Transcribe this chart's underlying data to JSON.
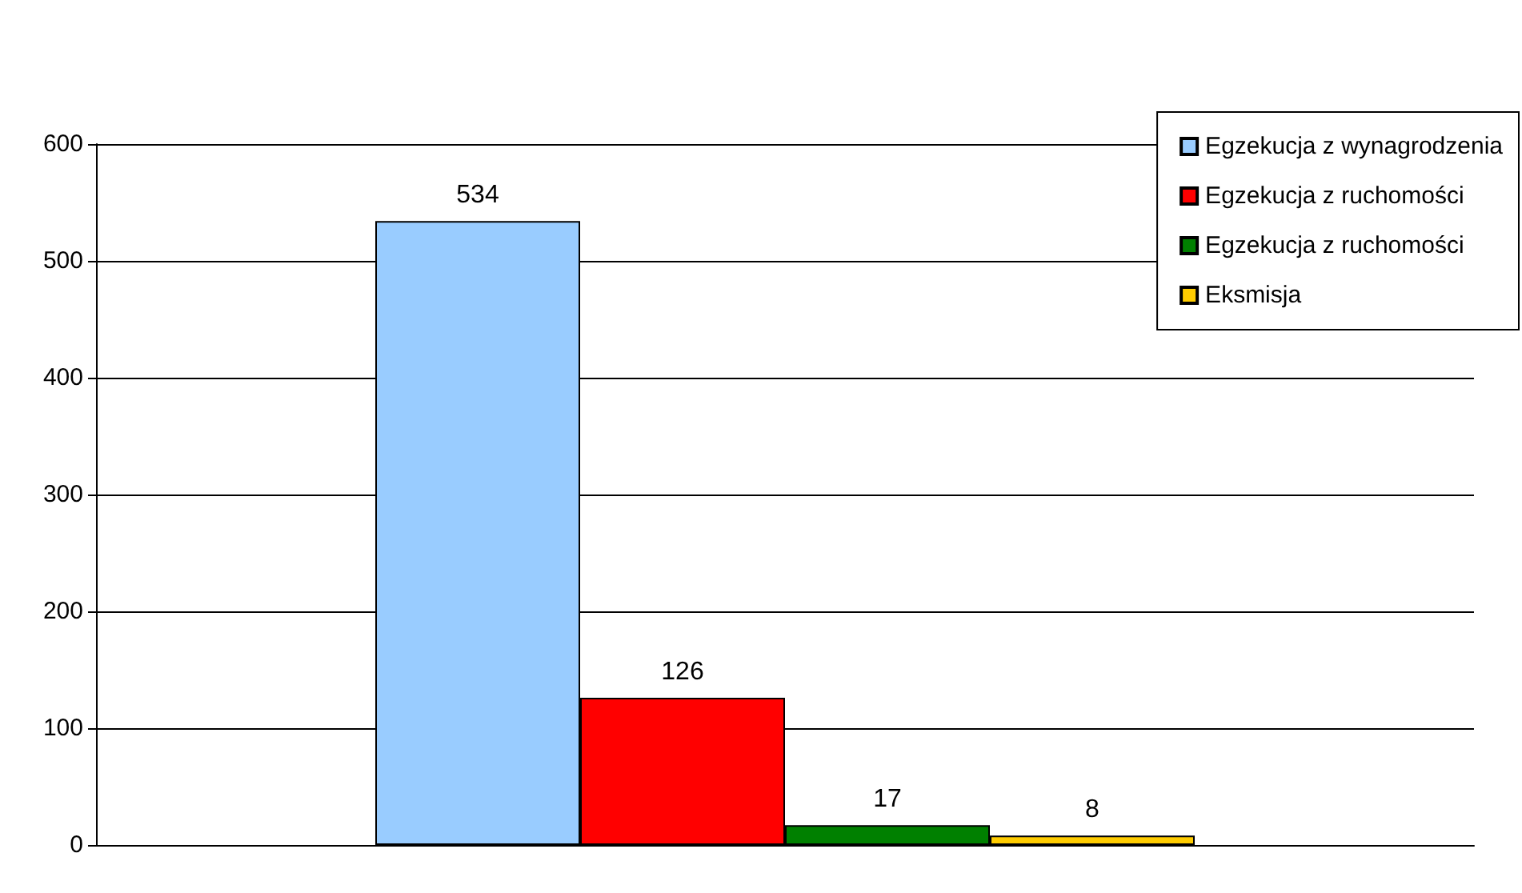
{
  "chart_data": {
    "type": "bar",
    "categories": [
      null
    ],
    "series": [
      {
        "name": "Egzekucja z wynagrodzenia",
        "color": "#99ccff",
        "values": [
          534
        ]
      },
      {
        "name": "Egzekucja z ruchomości",
        "color": "#ff0000",
        "values": [
          126
        ]
      },
      {
        "name": "Egzekucja z ruchomości",
        "color": "#008000",
        "values": [
          17
        ]
      },
      {
        "name": "Eksmisja",
        "color": "#ffcc00",
        "values": [
          8
        ]
      }
    ],
    "ylim": [
      0,
      600
    ],
    "yticks": [
      0,
      100,
      200,
      300,
      400,
      500,
      600
    ],
    "grid": "y",
    "legend": "top right",
    "data_labels": true
  }
}
